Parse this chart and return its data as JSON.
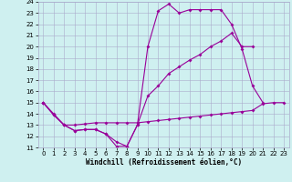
{
  "xlabel": "Windchill (Refroidissement éolien,°C)",
  "background_color": "#cff0f0",
  "line_color": "#990099",
  "xlim": [
    -0.5,
    23.5
  ],
  "ylim": [
    11,
    24
  ],
  "yticks": [
    11,
    12,
    13,
    14,
    15,
    16,
    17,
    18,
    19,
    20,
    21,
    22,
    23,
    24
  ],
  "xticks": [
    0,
    1,
    2,
    3,
    4,
    5,
    6,
    7,
    8,
    9,
    10,
    11,
    12,
    13,
    14,
    15,
    16,
    17,
    18,
    19,
    20,
    21,
    22,
    23
  ],
  "line1_x": [
    0,
    1,
    2,
    3,
    4,
    5,
    6,
    7,
    8,
    9,
    10,
    11,
    12,
    13,
    14,
    15,
    16,
    17,
    18,
    19,
    20,
    21
  ],
  "line1_y": [
    15.0,
    13.9,
    13.0,
    12.5,
    12.6,
    12.6,
    12.2,
    11.1,
    11.1,
    13.0,
    20.0,
    23.2,
    23.8,
    23.0,
    23.3,
    23.3,
    23.3,
    23.3,
    22.0,
    19.8,
    16.5,
    15.0
  ],
  "line2_x": [
    0,
    1,
    2,
    3,
    4,
    5,
    6,
    7,
    8,
    9,
    10,
    11,
    12,
    13,
    14,
    15,
    16,
    17,
    18,
    19,
    20
  ],
  "line2_y": [
    15.0,
    14.0,
    13.0,
    12.5,
    12.6,
    12.6,
    12.2,
    11.5,
    11.1,
    13.0,
    15.6,
    16.5,
    17.6,
    18.2,
    18.8,
    19.3,
    20.0,
    20.5,
    21.2,
    20.0,
    20.0
  ],
  "line3_x": [
    0,
    1,
    2,
    3,
    4,
    5,
    6,
    7,
    8,
    9,
    10,
    11,
    12,
    13,
    14,
    15,
    16,
    17,
    18,
    19,
    20,
    21,
    22,
    23
  ],
  "line3_y": [
    15.0,
    13.9,
    13.0,
    13.0,
    13.1,
    13.2,
    13.2,
    13.2,
    13.2,
    13.2,
    13.3,
    13.4,
    13.5,
    13.6,
    13.7,
    13.8,
    13.9,
    14.0,
    14.1,
    14.2,
    14.3,
    14.9,
    15.0,
    15.0
  ],
  "xlabel_fontsize": 5.5,
  "tick_fontsize": 5,
  "linewidth": 0.8,
  "markersize": 2.0
}
